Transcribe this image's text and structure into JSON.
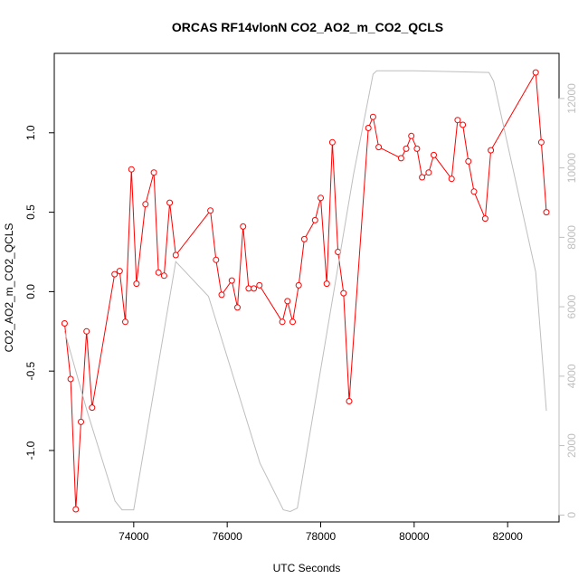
{
  "chart_data": {
    "type": "line",
    "title": "ORCAS RF14vlonN CO2_AO2_m_CO2_QCLS",
    "xlabel": "UTC Seconds",
    "ylabel": "CO2_AO2_m_CO2_QCLS",
    "xlim": [
      72300,
      83100
    ],
    "ylim": [
      -1.45,
      1.5
    ],
    "ylim_right": [
      -200,
      13300
    ],
    "x_ticks": [
      74000,
      76000,
      78000,
      80000,
      82000
    ],
    "y_ticks": [
      -1.0,
      -0.5,
      0.0,
      0.5,
      1.0
    ],
    "y_tick_labels": [
      "-1.0",
      "-0.5",
      "0.0",
      "0.5",
      "1.0"
    ],
    "y_right_ticks": [
      0,
      2000,
      4000,
      6000,
      8000,
      10000,
      12000
    ],
    "grid": false,
    "colors": {
      "primary": "#ff0000",
      "secondary": "#bebebe",
      "axis": "#000000"
    },
    "series": [
      {
        "axis": "left",
        "markers": true,
        "x": [
          72520,
          72650,
          72760,
          72870,
          72990,
          73110,
          73590,
          73700,
          73820,
          73950,
          74060,
          74250,
          74430,
          74530,
          74650,
          74770,
          74900,
          75640,
          75760,
          75880,
          76100,
          76220,
          76340,
          76460,
          76570,
          76690,
          77180,
          77290,
          77400,
          77530,
          77650,
          77880,
          78000,
          78130,
          78250,
          78370,
          78490,
          78610,
          79020,
          79120,
          79240,
          79720,
          79830,
          79940,
          80060,
          80170,
          80310,
          80420,
          80800,
          80930,
          81040,
          81160,
          81280,
          81520,
          81640,
          82600,
          82720,
          82830
        ],
        "values": [
          -0.2,
          -0.55,
          -1.37,
          -0.82,
          -0.25,
          -0.73,
          0.11,
          0.13,
          -0.19,
          0.77,
          0.05,
          0.55,
          0.75,
          0.12,
          0.1,
          0.56,
          0.23,
          0.51,
          0.2,
          -0.02,
          0.07,
          -0.1,
          0.41,
          0.02,
          0.02,
          0.04,
          -0.19,
          -0.06,
          -0.19,
          0.04,
          0.33,
          0.45,
          0.59,
          0.05,
          0.94,
          0.25,
          -0.01,
          -0.69,
          1.03,
          1.1,
          0.91,
          0.84,
          0.9,
          0.98,
          0.9,
          0.72,
          0.75,
          0.86,
          0.71,
          1.08,
          1.05,
          0.82,
          0.63,
          0.46,
          0.89,
          1.38,
          0.94,
          0.5
        ]
      },
      {
        "axis": "right",
        "markers": false,
        "x": [
          72520,
          73000,
          73600,
          73750,
          74000,
          74900,
          75600,
          76700,
          77200,
          77350,
          77500,
          78700,
          79120,
          79200,
          80000,
          81600,
          81700,
          82600,
          82830
        ],
        "values": [
          5300,
          3000,
          400,
          150,
          150,
          7300,
          6300,
          1500,
          150,
          100,
          200,
          9800,
          12700,
          12800,
          12800,
          12750,
          12500,
          7000,
          3000
        ]
      }
    ]
  }
}
